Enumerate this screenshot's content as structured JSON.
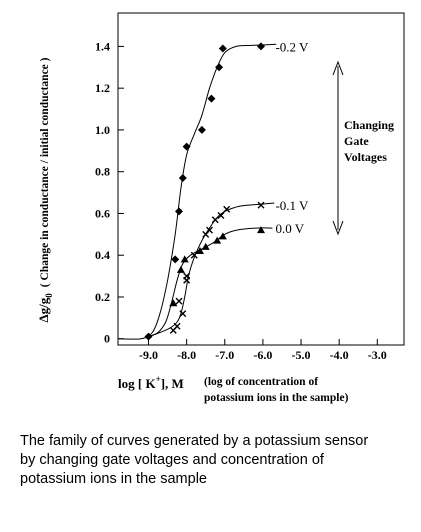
{
  "chart_data": {
    "type": "scatter",
    "xlim": [
      -9.8,
      -2.3
    ],
    "ylim": [
      -0.03,
      1.56
    ],
    "x_ticks": [
      -9.0,
      -8.0,
      -7.0,
      -6.0,
      -5.0,
      -4.0,
      -3.0
    ],
    "x_tick_labels": [
      "-9.0",
      "-8.0",
      "-7.0",
      "-6.0",
      "-5.0",
      "-4.0",
      "-3.0"
    ],
    "y_ticks": [
      0,
      0.2,
      0.4,
      0.6,
      0.8,
      1.0,
      1.2,
      1.4
    ],
    "y_tick_labels": [
      "0",
      "0.2",
      "0.4",
      "0.6",
      "0.8",
      "1.0",
      "1.2",
      "1.4"
    ],
    "grid": false,
    "ylabel_main": "Δg/g",
    "ylabel_sub": "0",
    "ylabel_paren": "( Change in conductance / initial conductance )",
    "xlabel_pre": "log [ K",
    "xlabel_sup": "+",
    "xlabel_post": "], M",
    "xlabel_note_line1": "(log of concentration of",
    "xlabel_note_line2": "potassium ions in the sample)",
    "series": [
      {
        "name": "-0.2 V",
        "marker": "diamond",
        "points": [
          [
            -9.0,
            0.01
          ],
          [
            -8.3,
            0.38
          ],
          [
            -8.2,
            0.61
          ],
          [
            -8.1,
            0.77
          ],
          [
            -8.0,
            0.92
          ],
          [
            -7.6,
            1.0
          ],
          [
            -7.35,
            1.15
          ],
          [
            -7.15,
            1.3
          ],
          [
            -7.05,
            1.39
          ],
          [
            -6.05,
            1.4
          ]
        ],
        "curve": [
          [
            -9.8,
            0
          ],
          [
            -9.2,
            0
          ],
          [
            -8.9,
            0.03
          ],
          [
            -8.7,
            0.12
          ],
          [
            -8.5,
            0.28
          ],
          [
            -8.3,
            0.5
          ],
          [
            -8.15,
            0.72
          ],
          [
            -8.0,
            0.88
          ],
          [
            -7.8,
            0.98
          ],
          [
            -7.6,
            1.07
          ],
          [
            -7.4,
            1.2
          ],
          [
            -7.2,
            1.3
          ],
          [
            -7.0,
            1.37
          ],
          [
            -6.7,
            1.4
          ],
          [
            -6.3,
            1.405
          ],
          [
            -5.65,
            1.41
          ]
        ]
      },
      {
        "name": "-0.1 V",
        "marker": "x",
        "points": [
          [
            -8.35,
            0.04
          ],
          [
            -8.25,
            0.06
          ],
          [
            -8.2,
            0.18
          ],
          [
            -8.1,
            0.12
          ],
          [
            -8.0,
            0.28
          ],
          [
            -8.0,
            0.3
          ],
          [
            -7.8,
            0.4
          ],
          [
            -7.5,
            0.5
          ],
          [
            -7.4,
            0.52
          ],
          [
            -7.25,
            0.57
          ],
          [
            -7.1,
            0.59
          ],
          [
            -6.95,
            0.62
          ],
          [
            -6.05,
            0.64
          ]
        ],
        "curve": [
          [
            -9.0,
            0.01
          ],
          [
            -8.7,
            0.03
          ],
          [
            -8.45,
            0.05
          ],
          [
            -8.25,
            0.08
          ],
          [
            -8.15,
            0.12
          ],
          [
            -8.05,
            0.2
          ],
          [
            -7.95,
            0.3
          ],
          [
            -7.8,
            0.39
          ],
          [
            -7.6,
            0.47
          ],
          [
            -7.4,
            0.53
          ],
          [
            -7.2,
            0.58
          ],
          [
            -7.0,
            0.61
          ],
          [
            -6.6,
            0.635
          ],
          [
            -6.0,
            0.645
          ],
          [
            -5.7,
            0.65
          ]
        ]
      },
      {
        "name": "0.0 V",
        "marker": "triangle",
        "points": [
          [
            -8.35,
            0.17
          ],
          [
            -8.15,
            0.33
          ],
          [
            -8.05,
            0.38
          ],
          [
            -7.65,
            0.42
          ],
          [
            -7.5,
            0.44
          ],
          [
            -7.2,
            0.47
          ],
          [
            -7.05,
            0.49
          ],
          [
            -6.05,
            0.52
          ]
        ],
        "curve": [
          [
            -9.0,
            0.01
          ],
          [
            -8.75,
            0.03
          ],
          [
            -8.55,
            0.08
          ],
          [
            -8.4,
            0.17
          ],
          [
            -8.25,
            0.28
          ],
          [
            -8.1,
            0.36
          ],
          [
            -7.9,
            0.4
          ],
          [
            -7.6,
            0.43
          ],
          [
            -7.3,
            0.46
          ],
          [
            -7.0,
            0.5
          ],
          [
            -6.7,
            0.52
          ],
          [
            -6.2,
            0.53
          ],
          [
            -5.75,
            0.53
          ]
        ]
      }
    ],
    "annotation_lines": [
      "Changing",
      "Gate",
      "Voltages"
    ]
  },
  "caption": {
    "line1": "The family of curves generated by a potassium sensor",
    "line2": "by changing gate voltages and concentration of",
    "line3": "potassium ions in the sample"
  }
}
